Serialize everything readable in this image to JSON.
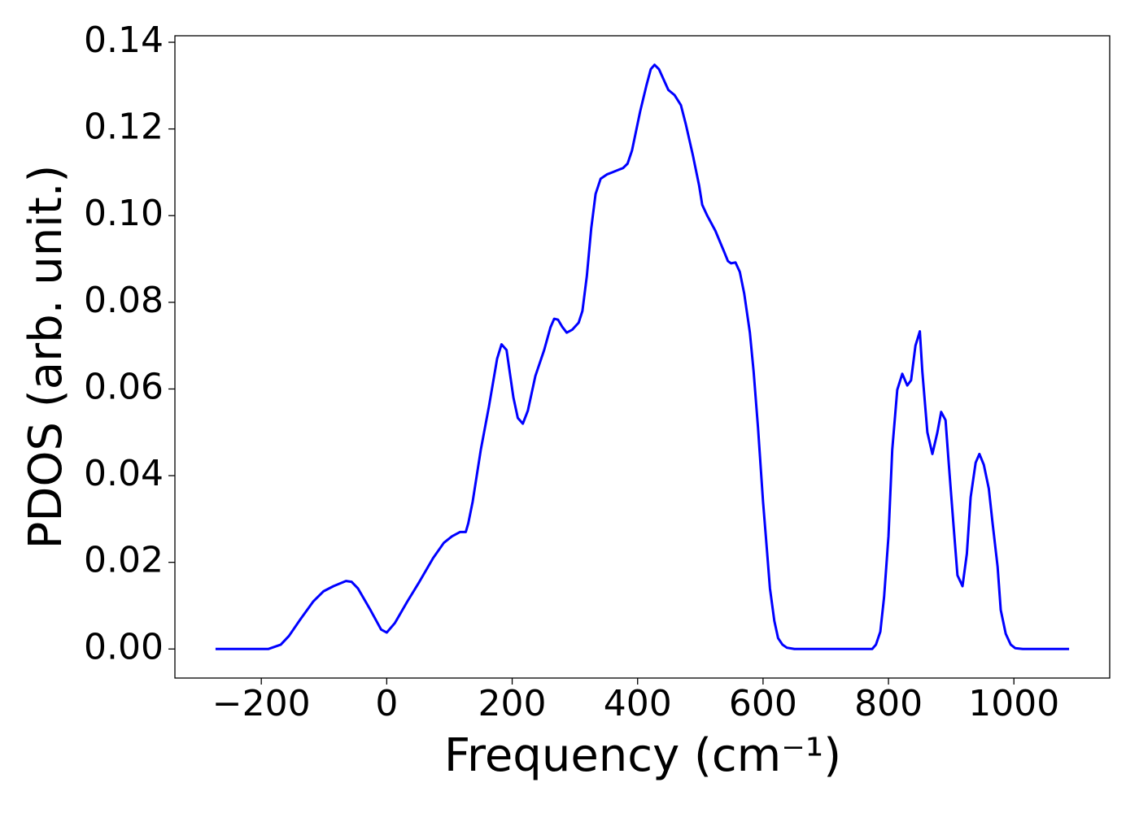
{
  "chart_data": {
    "type": "line",
    "xlabel": "Frequency (cm⁻¹)",
    "ylabel": "PDOS (arb. unit.)",
    "x": [
      -273,
      -189,
      -169,
      -156,
      -137,
      -117,
      -101,
      -85,
      -65,
      -56,
      -46,
      -26,
      -9,
      0,
      13,
      33,
      52,
      74,
      91,
      104,
      117,
      126,
      130,
      137,
      150,
      163,
      176,
      183,
      191,
      202,
      209,
      217,
      225,
      237,
      251,
      261,
      267,
      273,
      280,
      287,
      296,
      306,
      312,
      319,
      326,
      333,
      341,
      351,
      360,
      377,
      384,
      391,
      404,
      414,
      421,
      427,
      434,
      449,
      459,
      469,
      477,
      488,
      498,
      503,
      511,
      524,
      537,
      544,
      549,
      556,
      563,
      570,
      579,
      585,
      592,
      600,
      605,
      611,
      618,
      624,
      631,
      638,
      650,
      774,
      780,
      787,
      793,
      800,
      806,
      814,
      822,
      830,
      836,
      843,
      850,
      854,
      862,
      870,
      878,
      884,
      891,
      896,
      904,
      910,
      918,
      925,
      931,
      939,
      945,
      952,
      960,
      966,
      974,
      979,
      987,
      995,
      1002,
      1014,
      1088
    ],
    "series": [
      {
        "name": "PDOS",
        "color": "#0000ff",
        "values": [
          0,
          0,
          0.001,
          0.003,
          0.007,
          0.011,
          0.0133,
          0.0145,
          0.0157,
          0.0155,
          0.014,
          0.009,
          0.0045,
          0.0038,
          0.006,
          0.011,
          0.0155,
          0.021,
          0.0245,
          0.026,
          0.027,
          0.027,
          0.029,
          0.034,
          0.046,
          0.056,
          0.067,
          0.0703,
          0.069,
          0.058,
          0.0533,
          0.052,
          0.055,
          0.063,
          0.069,
          0.0742,
          0.0762,
          0.076,
          0.0743,
          0.073,
          0.0737,
          0.0753,
          0.078,
          0.086,
          0.097,
          0.105,
          0.1085,
          0.1095,
          0.11,
          0.111,
          0.112,
          0.115,
          0.124,
          0.13,
          0.1338,
          0.1348,
          0.1338,
          0.129,
          0.1278,
          0.1255,
          0.121,
          0.114,
          0.107,
          0.1025,
          0.1,
          0.0965,
          0.092,
          0.0895,
          0.089,
          0.0892,
          0.087,
          0.082,
          0.073,
          0.064,
          0.051,
          0.034,
          0.025,
          0.014,
          0.0065,
          0.0025,
          0.001,
          0.0003,
          0,
          0,
          0.001,
          0.004,
          0.012,
          0.026,
          0.046,
          0.0598,
          0.0635,
          0.0608,
          0.062,
          0.07,
          0.0733,
          0.064,
          0.05,
          0.045,
          0.05,
          0.0547,
          0.0528,
          0.043,
          0.028,
          0.017,
          0.0145,
          0.022,
          0.035,
          0.043,
          0.045,
          0.0425,
          0.037,
          0.029,
          0.019,
          0.009,
          0.0035,
          0.001,
          0.0002,
          0,
          0
        ]
      }
    ],
    "xlim": [
      -337.75,
      1152.75
    ],
    "ylim": [
      -0.0067,
      0.1415
    ],
    "xticks": [
      {
        "value": -200,
        "label": "−200"
      },
      0,
      200,
      400,
      600,
      800,
      1000
    ],
    "yticks": [
      {
        "value": 0,
        "label": "0.00"
      },
      {
        "value": 0.02,
        "label": "0.02"
      },
      {
        "value": 0.04,
        "label": "0.04"
      },
      {
        "value": 0.06,
        "label": "0.06"
      },
      {
        "value": 0.08,
        "label": "0.08"
      },
      {
        "value": 0.1,
        "label": "0.10"
      },
      {
        "value": 0.12,
        "label": "0.12"
      },
      {
        "value": 0.14,
        "label": "0.14"
      }
    ],
    "grid": false
  }
}
